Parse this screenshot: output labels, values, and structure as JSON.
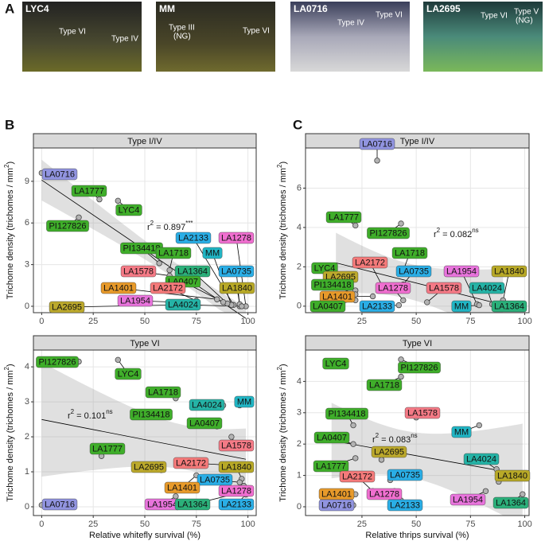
{
  "panels": {
    "letters": [
      "A",
      "B",
      "C"
    ],
    "photos": [
      {
        "label": "LYC4",
        "notes": [
          "Type VI",
          "Type IV"
        ]
      },
      {
        "label": "MM",
        "notes": [
          "Type III",
          "(NG)",
          "Type VI"
        ]
      },
      {
        "label": "LA0716",
        "notes": [
          "Type IV",
          "Type VI"
        ]
      },
      {
        "label": "LA2695",
        "notes": [
          "Type VI",
          "Type V",
          "(NG)"
        ]
      }
    ]
  },
  "genotype_colors": {
    "LA0716": "#9194e0",
    "LA1777": "#3fae2a",
    "LYC4": "#3fae2a",
    "PI127826": "#3fae2a",
    "PI134418": "#3fae2a",
    "LA1718": "#3fae2a",
    "LA0407": "#3fae2a",
    "LA1364": "#2bb07a",
    "LA2133": "#2aaee6",
    "LA0735": "#2aaee6",
    "MM": "#21b5c4",
    "LA4024": "#25b3a6",
    "LA1278": "#f06fd0",
    "LA1954": "#e874dc",
    "LA1578": "#f57a86",
    "LA2172": "#f57a7a",
    "LA1401": "#e89a2a",
    "LA1840": "#b8a927",
    "LA2695": "#bca92c"
  },
  "chart_data": [
    {
      "type": "scatter",
      "title": "Type I/IV",
      "ylabel": "Trichome density (trichomes / mm",
      "ylabel_sup": "2",
      "ylabel_end": ")",
      "labels": [
        "LA0716",
        "LA1777",
        "LYC4",
        "PI127826",
        "LA2133",
        "LA1278",
        "PI134418",
        "LA1718",
        "MM",
        "LA1364",
        "LA0735",
        "LA1578",
        "LA0407",
        "LA1401",
        "LA2172",
        "LA1840",
        "LA1954",
        "LA4024",
        "LA2695"
      ],
      "x": [
        0,
        28,
        37,
        18,
        93,
        99,
        57,
        62,
        92,
        90,
        96,
        62,
        88,
        85,
        75,
        96,
        65,
        97,
        65
      ],
      "y": [
        9.6,
        7.7,
        7.6,
        6.4,
        0.1,
        0,
        3.1,
        2.6,
        0.1,
        0.2,
        0,
        2.2,
        0.3,
        0.5,
        0.4,
        0.15,
        0.3,
        0,
        0.1
      ],
      "xlim": [
        -4,
        104
      ],
      "ylim": [
        -0.46,
        11.4
      ],
      "xticks": [
        0,
        25,
        50,
        75,
        100
      ],
      "yticks": [
        0,
        3,
        6,
        9
      ],
      "grid": true,
      "annotation": {
        "base": "r",
        "sup": "2",
        "text": " = 0.897",
        "sig": "***"
      }
    },
    {
      "type": "scatter",
      "title": "Type I/IV",
      "ylabel": "Trichome density (trichomes / mm",
      "ylabel_sup": "2",
      "ylabel_end": ")",
      "labels": [
        "LA0716",
        "LA1777",
        "PI127826",
        "LA1718",
        "LA2172",
        "LYC4",
        "LA2695",
        "LA0735",
        "LA1954",
        "LA1840",
        "PI134418",
        "LA1278",
        "LA1578",
        "LA4024",
        "LA1401",
        "LA0407",
        "LA2133",
        "MM",
        "LA1364"
      ],
      "x": [
        32,
        22,
        43,
        44,
        35,
        13,
        22,
        44,
        78,
        90,
        22,
        44,
        55,
        85,
        30,
        22,
        42,
        79,
        86
      ],
      "y": [
        7.4,
        4.1,
        4.2,
        1.8,
        0.9,
        1.2,
        0.8,
        1.1,
        0.1,
        0.3,
        0.6,
        0.3,
        0.2,
        0.1,
        0.5,
        0.3,
        0.05,
        0.05,
        0.05
      ],
      "xlim": [
        -1,
        102
      ],
      "ylim": [
        -0.33,
        8.04
      ],
      "xticks": [
        25,
        50,
        75,
        100
      ],
      "yticks": [
        0,
        2,
        4,
        6
      ],
      "grid": true,
      "annotation": {
        "base": "r",
        "sup": "2",
        "text": " = 0.082",
        "sig": "ns"
      }
    },
    {
      "type": "scatter",
      "title": "Type VI",
      "ylabel": "Trichome density (trichomes / mm",
      "ylabel_sup": "2",
      "ylabel_end": ")",
      "xlabel": "Relative whitefly survival (%)",
      "labels": [
        "PI127826",
        "LYC4",
        "LA1718",
        "MM",
        "LA4024",
        "PI134418",
        "LA0407",
        "LA1578",
        "LA1777",
        "LA2172",
        "LA2695",
        "LA1840",
        "LA0735",
        "LA1401",
        "LA1278",
        "LA1954",
        "LA1364",
        "LA2133",
        "LA0716"
      ],
      "x": [
        18,
        37,
        65,
        96,
        88,
        55,
        85,
        92,
        29,
        88,
        58,
        97,
        96,
        75,
        98,
        65,
        96,
        99,
        0
      ],
      "y": [
        4.15,
        4.2,
        3.1,
        2.9,
        2.9,
        2.7,
        2.3,
        2.0,
        1.45,
        1.2,
        1.05,
        0.8,
        0.7,
        0.9,
        0.6,
        0.3,
        0.4,
        0.35,
        0.05
      ],
      "xlim": [
        -4,
        104
      ],
      "ylim": [
        -0.25,
        4.48
      ],
      "xticks": [
        0,
        25,
        50,
        75,
        100
      ],
      "yticks": [
        0,
        1,
        2,
        3,
        4
      ],
      "grid": true,
      "annotation": {
        "base": "r",
        "sup": "2",
        "text": " = 0.101",
        "sig": "ns"
      }
    },
    {
      "type": "scatter",
      "title": "Type VI",
      "ylabel": "Trichome density (trichomes / mm",
      "ylabel_sup": "2",
      "ylabel_end": ")",
      "xlabel": "Relative thrips survival (%)",
      "labels": [
        "LYC4",
        "PI127826",
        "LA1718",
        "PI134418",
        "LA1578",
        "MM",
        "LA0407",
        "LA2695",
        "LA1777",
        "LA4024",
        "LA0735",
        "LA1840",
        "LA2172",
        "LA1401",
        "LA1278",
        "LA1954",
        "LA1364",
        "LA0716",
        "LA2133"
      ],
      "x": [
        11,
        43,
        43,
        21,
        50,
        79,
        21,
        34,
        22,
        87,
        38,
        88,
        30,
        22,
        40,
        82,
        99,
        21,
        43
      ],
      "y": [
        4.55,
        4.7,
        4.15,
        2.6,
        2.85,
        2.6,
        2.0,
        1.5,
        1.55,
        1.2,
        0.85,
        0.8,
        0.5,
        0.4,
        0.5,
        0.5,
        0.4,
        0.05,
        0.2
      ],
      "xlim": [
        -1,
        102
      ],
      "ylim": [
        -0.28,
        5.0
      ],
      "xticks": [
        25,
        50,
        75,
        100
      ],
      "yticks": [
        0,
        1,
        2,
        3,
        4
      ],
      "grid": true,
      "annotation": {
        "base": "r",
        "sup": "2",
        "text": " = 0.083",
        "sig": "ns"
      }
    }
  ]
}
